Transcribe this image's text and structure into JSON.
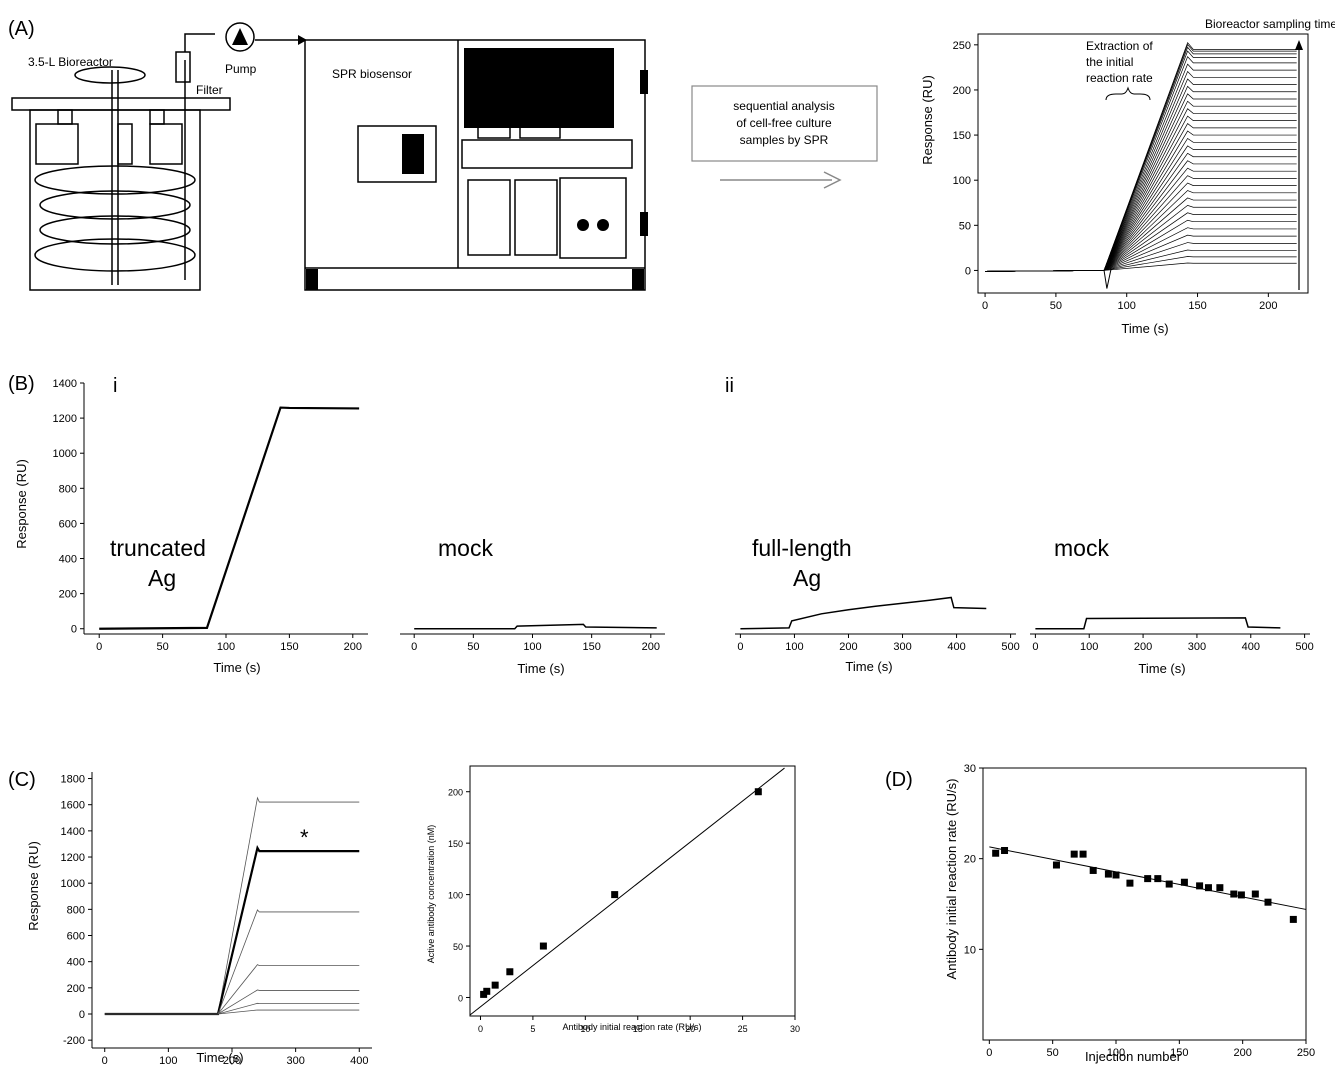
{
  "panel_labels": {
    "a": "(A)",
    "b": "(B)",
    "c": "(C)",
    "d": "(D)",
    "bi": "i",
    "bii": "ii"
  },
  "schematic": {
    "bioreactor_label": "3.5-L Bioreactor",
    "filter_label": "Filter",
    "pump_label": "Pump",
    "spr_label": "SPR biosensor",
    "flow_box_text": [
      "sequential analysis",
      "of cell-free culture",
      "samples by SPR"
    ]
  },
  "annotations": {
    "extraction": [
      "Extraction of",
      "the initial",
      "reaction rate"
    ],
    "sampling": "Bioreactor sampling time",
    "truncated": "truncated",
    "truncated_ag": "Ag",
    "mock1": "mock",
    "fulllength": "full-length",
    "fulllength_ag": "Ag",
    "mock2": "mock",
    "star": "*"
  },
  "chart_data": [
    {
      "id": "A-sensorgrams",
      "type": "line",
      "xlabel": "Time (s)",
      "ylabel": "Response (RU)",
      "xlim": [
        -5,
        228
      ],
      "ylim": [
        -25,
        262
      ],
      "xticks": [
        0,
        50,
        100,
        150,
        200
      ],
      "yticks": [
        0,
        50,
        100,
        150,
        200,
        250
      ],
      "injection_start": 84,
      "injection_end": 143,
      "end_time": 220,
      "plateau_values": [
        8,
        15,
        22,
        30,
        38,
        46,
        54,
        62,
        70,
        78,
        86,
        94,
        102,
        110,
        118,
        126,
        134,
        142,
        150,
        158,
        166,
        174,
        182,
        190,
        198,
        206,
        214,
        222,
        230,
        236,
        240,
        243,
        245
      ]
    },
    {
      "id": "Bi-truncated",
      "type": "line",
      "xlabel": "Time (s)",
      "ylabel": "Response (RU)",
      "xlim": [
        -12,
        212
      ],
      "ylim": [
        -30,
        1400
      ],
      "xticks": [
        0,
        50,
        100,
        150,
        200
      ],
      "yticks": [
        0,
        200,
        400,
        600,
        800,
        1000,
        1200,
        1400
      ],
      "x": [
        0,
        85,
        143,
        150,
        205
      ],
      "y": [
        0,
        5,
        1260,
        1258,
        1255
      ]
    },
    {
      "id": "Bi-mock",
      "type": "line",
      "xlabel": "Time (s)",
      "ylabel": "",
      "xlim": [
        -12,
        212
      ],
      "ylim": [
        -30,
        1400
      ],
      "xticks": [
        0,
        50,
        100,
        150,
        200
      ],
      "x": [
        0,
        85,
        87,
        143,
        145,
        205
      ],
      "y": [
        0,
        0,
        15,
        25,
        10,
        5
      ]
    },
    {
      "id": "Bii-fulllength",
      "type": "line",
      "xlabel": "Time (s)",
      "ylabel": "",
      "xlim": [
        -10,
        510
      ],
      "ylim": [
        -30,
        1400
      ],
      "xticks": [
        0,
        100,
        200,
        300,
        400,
        500
      ],
      "x": [
        0,
        90,
        95,
        150,
        200,
        250,
        300,
        350,
        390,
        395,
        455
      ],
      "y": [
        0,
        5,
        45,
        85,
        108,
        128,
        145,
        162,
        178,
        120,
        115
      ]
    },
    {
      "id": "Bii-mock",
      "type": "line",
      "xlabel": "Time (s)",
      "ylabel": "",
      "xlim": [
        -10,
        510
      ],
      "ylim": [
        -30,
        1400
      ],
      "xticks": [
        0,
        100,
        200,
        300,
        400,
        500
      ],
      "x": [
        0,
        90,
        95,
        390,
        395,
        455
      ],
      "y": [
        0,
        0,
        58,
        62,
        10,
        5
      ]
    },
    {
      "id": "C-calibration-sensorgrams",
      "type": "line",
      "xlabel": "Time (s)",
      "ylabel": "Response (RU)",
      "xlim": [
        -20,
        420
      ],
      "ylim": [
        -260,
        1850
      ],
      "xticks": [
        0,
        100,
        200,
        300,
        400
      ],
      "yticks": [
        -200,
        0,
        200,
        400,
        600,
        800,
        1000,
        1200,
        1400,
        1600,
        1800
      ],
      "injection_start": 178,
      "injection_end": 240,
      "end_time": 400,
      "plateau_values": [
        1620,
        1245,
        780,
        370,
        180,
        80,
        30
      ],
      "highlighted_index": 1
    },
    {
      "id": "C-calibration-curve",
      "type": "scatter",
      "xlabel": "Antibody initial reaction rate (RU/s)",
      "ylabel": "Active antibody concentration (nM)",
      "xlim": [
        -1,
        30
      ],
      "ylim": [
        -18,
        225
      ],
      "xticks": [
        0,
        5,
        10,
        15,
        20,
        25,
        30
      ],
      "yticks": [
        0,
        50,
        100,
        150,
        200
      ],
      "points": [
        [
          0.3,
          3
        ],
        [
          0.6,
          6
        ],
        [
          1.4,
          12
        ],
        [
          2.8,
          25
        ],
        [
          6.0,
          50
        ],
        [
          12.8,
          100
        ],
        [
          26.5,
          200
        ]
      ],
      "fit_line": [
        [
          -1,
          -17
        ],
        [
          29,
          223
        ]
      ]
    },
    {
      "id": "D-initial-rate-vs-injection",
      "type": "scatter",
      "xlabel": "Injection number",
      "ylabel": "Antibody initial reaction rate (RU/s)",
      "xlim": [
        -5,
        250
      ],
      "ylim": [
        0,
        30
      ],
      "xticks": [
        0,
        50,
        100,
        150,
        200,
        250
      ],
      "yticks": [
        10,
        20,
        30
      ],
      "points": [
        [
          5,
          20.6
        ],
        [
          12,
          20.9
        ],
        [
          53,
          19.3
        ],
        [
          67,
          20.5
        ],
        [
          74,
          20.5
        ],
        [
          82,
          18.7
        ],
        [
          94,
          18.3
        ],
        [
          100,
          18.2
        ],
        [
          111,
          17.3
        ],
        [
          125,
          17.8
        ],
        [
          133,
          17.8
        ],
        [
          142,
          17.2
        ],
        [
          154,
          17.4
        ],
        [
          166,
          17.0
        ],
        [
          173,
          16.8
        ],
        [
          182,
          16.8
        ],
        [
          193,
          16.1
        ],
        [
          199,
          16.0
        ],
        [
          210,
          16.1
        ],
        [
          220,
          15.2
        ],
        [
          240,
          13.3
        ]
      ],
      "fit_line": [
        [
          0,
          21.3
        ],
        [
          250,
          14.4
        ]
      ]
    }
  ]
}
